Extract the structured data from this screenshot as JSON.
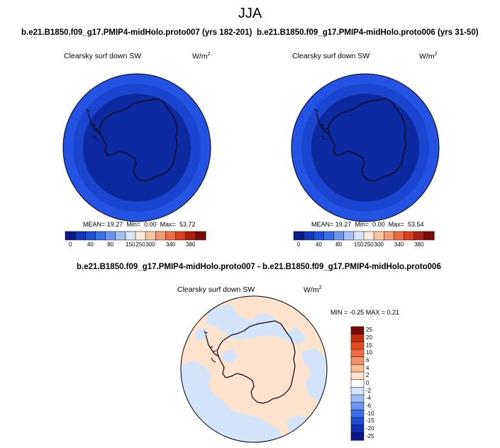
{
  "season": "JJA",
  "panels": [
    {
      "title": "b.e21.B1850.f09_g17.PMIP4-midHolo.proto007 (yrs 182-201)",
      "variable": "Clearsky surf down SW",
      "units": "W/m",
      "units_exp": "2",
      "stats": {
        "mean_label": "MEAN=",
        "mean": "19.27",
        "min_label": "Min=",
        "min": "0.00",
        "max_label": "Max=",
        "max": "53.72"
      }
    },
    {
      "title": "b.e21.B1850.f09_g17.PMIP4-midHolo.proto006 (yrs 31-50)",
      "variable": "Clearsky surf down SW",
      "units": "W/m",
      "units_exp": "2",
      "stats": {
        "mean_label": "MEAN=",
        "mean": "19.27",
        "min_label": "Min=",
        "min": "0.00",
        "max_label": "Max=",
        "max": "53.54"
      }
    }
  ],
  "diff_panel": {
    "title": "b.e21.B1850.f09_g17.PMIP4-midHolo.proto007 - b.e21.B1850.f09_g17.PMIP4-midHolo.proto006",
    "variable": "Clearsky surf down SW",
    "units": "W/m",
    "units_exp": "2",
    "stats": "MIN =  -0.25 MAX =   0.21"
  },
  "colors": {
    "abs_scale": [
      "#0a1a86",
      "#1236b4",
      "#1f51d8",
      "#3a6fea",
      "#6e96ef",
      "#a4c1f4",
      "#d7e6fb",
      "#fbe9dc",
      "#f8c4a6",
      "#f49a74",
      "#ee6c45",
      "#d8401d",
      "#ad1f0f",
      "#7b0b06"
    ],
    "diff_scale": [
      "#0b1788",
      "#0f2fb0",
      "#1f4ed6",
      "#3d70e8",
      "#6d94ef",
      "#9fbdf4",
      "#d4e5fb",
      "#ffffff",
      "#fde3cd",
      "#f8b993",
      "#f49066",
      "#ef6a3e",
      "#e44a1a",
      "#c22d0d",
      "#7a0a04"
    ],
    "land_line": "#000000",
    "ocean_outer": "#2452e2",
    "ocean_inner": "#0b2a9f",
    "diff_land": "#fde3cd",
    "diff_ocean": "#d4e5fb"
  },
  "chart_data": [
    {
      "type": "heatmap",
      "title": "b.e21.B1850.f09_g17.PMIP4-midHolo.proto007 (yrs 182-201)",
      "subtitle": "Clearsky surf down SW",
      "units": "W/m2",
      "projection": "south polar stereographic",
      "colorbar_ticks": [
        "0",
        "40",
        "80",
        "150",
        "250",
        "300",
        "340",
        "380"
      ],
      "mean": 19.27,
      "min": 0.0,
      "max": 53.72
    },
    {
      "type": "heatmap",
      "title": "b.e21.B1850.f09_g17.PMIP4-midHolo.proto006 (yrs 31-50)",
      "subtitle": "Clearsky surf down SW",
      "units": "W/m2",
      "projection": "south polar stereographic",
      "colorbar_ticks": [
        "0",
        "40",
        "80",
        "150",
        "250",
        "300",
        "340",
        "380"
      ],
      "mean": 19.27,
      "min": 0.0,
      "max": 53.54
    },
    {
      "type": "heatmap",
      "title": "b.e21.B1850.f09_g17.PMIP4-midHolo.proto007 - b.e21.B1850.f09_g17.PMIP4-midHolo.proto006",
      "subtitle": "Clearsky surf down SW",
      "units": "W/m2",
      "projection": "south polar stereographic",
      "colorbar_ticks": [
        "25",
        "20",
        "15",
        "10",
        "6",
        "4",
        "2",
        "0",
        "-2",
        "-4",
        "-6",
        "-10",
        "-15",
        "-20",
        "-25"
      ],
      "min": -0.25,
      "max": 0.21
    }
  ]
}
